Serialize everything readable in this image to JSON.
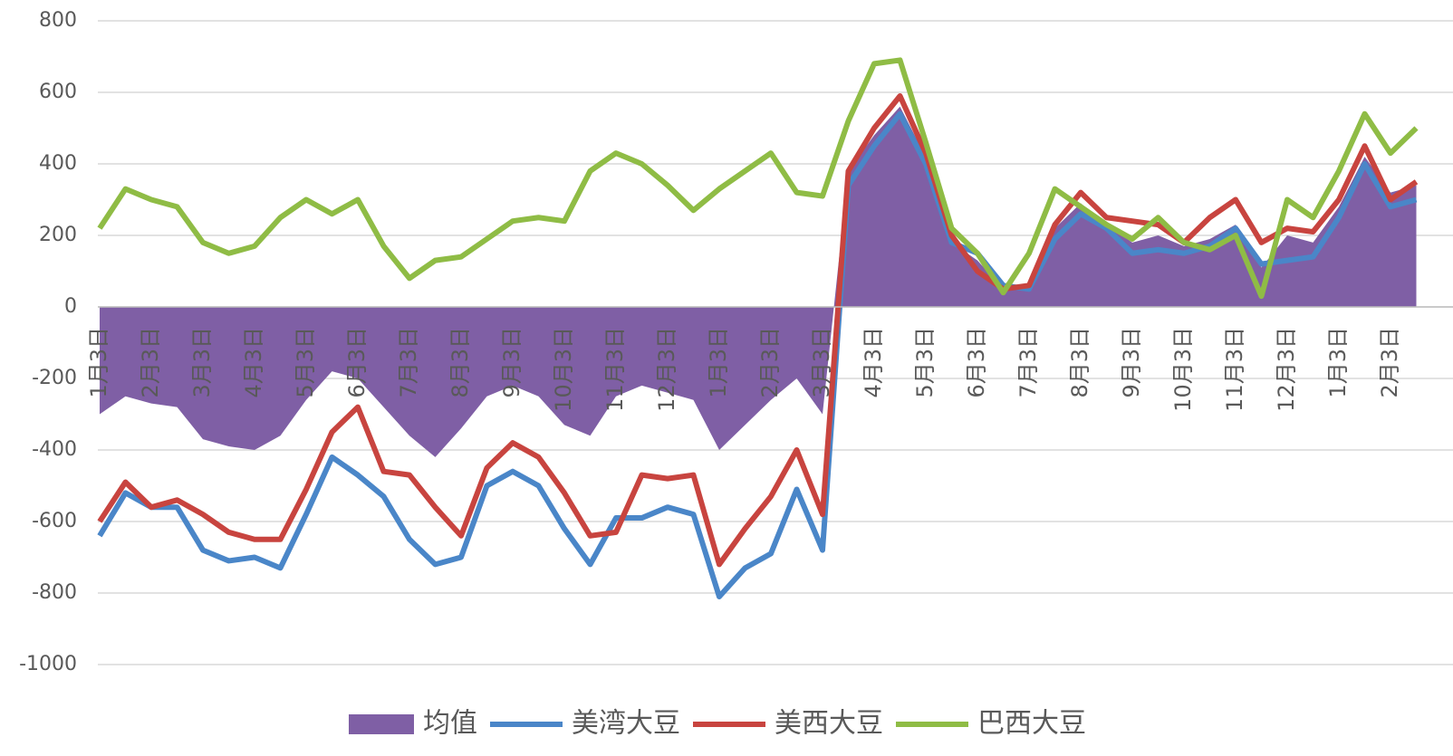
{
  "chart_data": {
    "type": "line",
    "categories": [
      "1月3日",
      null,
      "2月3日",
      null,
      "3月3日",
      null,
      "4月3日",
      null,
      "5月3日",
      null,
      "6月3日",
      null,
      "7月3日",
      null,
      "8月3日",
      null,
      "9月3日",
      null,
      "10月3日",
      null,
      "11月3日",
      null,
      "12月3日",
      null,
      "1月3日",
      null,
      "2月3日",
      null,
      "3月3日",
      null,
      "4月3日",
      null,
      "5月3日",
      null,
      "6月3日",
      null,
      "7月3日",
      null,
      "8月3日",
      null,
      "9月3日",
      null,
      "10月3日",
      null,
      "11月3日",
      null,
      "12月3日",
      null,
      "1月3日",
      null,
      "2月3日",
      null
    ],
    "series": [
      {
        "name": "均值",
        "color": "#7f5fa5",
        "style": "area",
        "values": [
          -300,
          -250,
          -270,
          -280,
          -370,
          -390,
          -400,
          -360,
          -260,
          -180,
          -200,
          -280,
          -360,
          -420,
          -340,
          -250,
          -220,
          -250,
          -330,
          -360,
          -250,
          -220,
          -240,
          -260,
          -400,
          -330,
          -260,
          -200,
          -300,
          380,
          480,
          560,
          420,
          180,
          130,
          50,
          60,
          220,
          290,
          230,
          180,
          200,
          170,
          190,
          230,
          110,
          200,
          180,
          280,
          420,
          320,
          340
        ]
      },
      {
        "name": "美湾大豆",
        "color": "#4a86c8",
        "style": "line",
        "values": [
          -640,
          -520,
          -560,
          -560,
          -680,
          -710,
          -700,
          -730,
          -580,
          -420,
          -470,
          -530,
          -650,
          -720,
          -700,
          -500,
          -460,
          -500,
          -620,
          -720,
          -590,
          -590,
          -560,
          -580,
          -810,
          -730,
          -690,
          -510,
          -680,
          340,
          450,
          540,
          400,
          180,
          150,
          60,
          50,
          190,
          260,
          220,
          150,
          160,
          150,
          170,
          220,
          120,
          130,
          140,
          250,
          400,
          280,
          300
        ]
      },
      {
        "name": "美西大豆",
        "color": "#c8443f",
        "style": "line",
        "values": [
          -600,
          -490,
          -560,
          -540,
          -580,
          -630,
          -650,
          -650,
          -510,
          -350,
          -280,
          -460,
          -470,
          -560,
          -640,
          -450,
          -380,
          -420,
          -520,
          -640,
          -630,
          -470,
          -480,
          -470,
          -720,
          -620,
          -530,
          -400,
          -580,
          380,
          500,
          590,
          430,
          200,
          100,
          50,
          60,
          230,
          320,
          250,
          240,
          230,
          180,
          250,
          300,
          180,
          220,
          210,
          300,
          450,
          300,
          350
        ]
      },
      {
        "name": "巴西大豆",
        "color": "#8fbc45",
        "style": "line",
        "values": [
          220,
          330,
          300,
          280,
          180,
          150,
          170,
          250,
          300,
          260,
          300,
          170,
          80,
          130,
          140,
          190,
          240,
          250,
          240,
          380,
          430,
          400,
          340,
          270,
          330,
          380,
          430,
          320,
          310,
          520,
          680,
          690,
          460,
          220,
          150,
          40,
          150,
          330,
          280,
          230,
          190,
          250,
          180,
          160,
          200,
          30,
          300,
          250,
          380,
          540,
          430,
          500
        ]
      }
    ],
    "ylim": [
      -1000,
      800
    ],
    "yticks": [
      -1000,
      -800,
      -600,
      -400,
      -200,
      0,
      200,
      400,
      600,
      800
    ],
    "grid": true
  }
}
